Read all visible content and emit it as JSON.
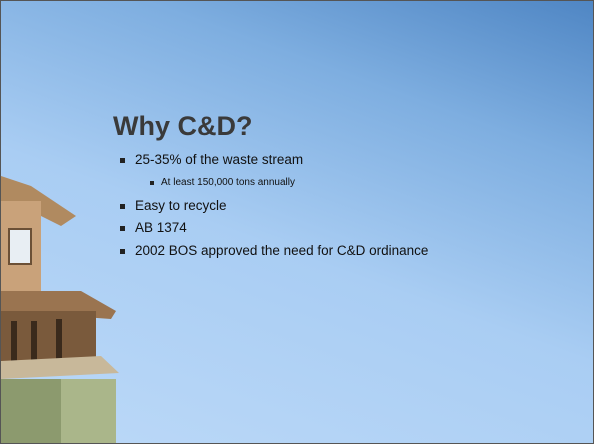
{
  "slide": {
    "title": "Why C&D?",
    "bullets": [
      {
        "text": "25-35% of the waste stream",
        "sub": [
          "At least 150,000 tons annually"
        ]
      },
      {
        "text": "Easy to recycle"
      },
      {
        "text": "AB 1374"
      },
      {
        "text": "2002 BOS approved the need for C&D ordinance"
      }
    ]
  }
}
